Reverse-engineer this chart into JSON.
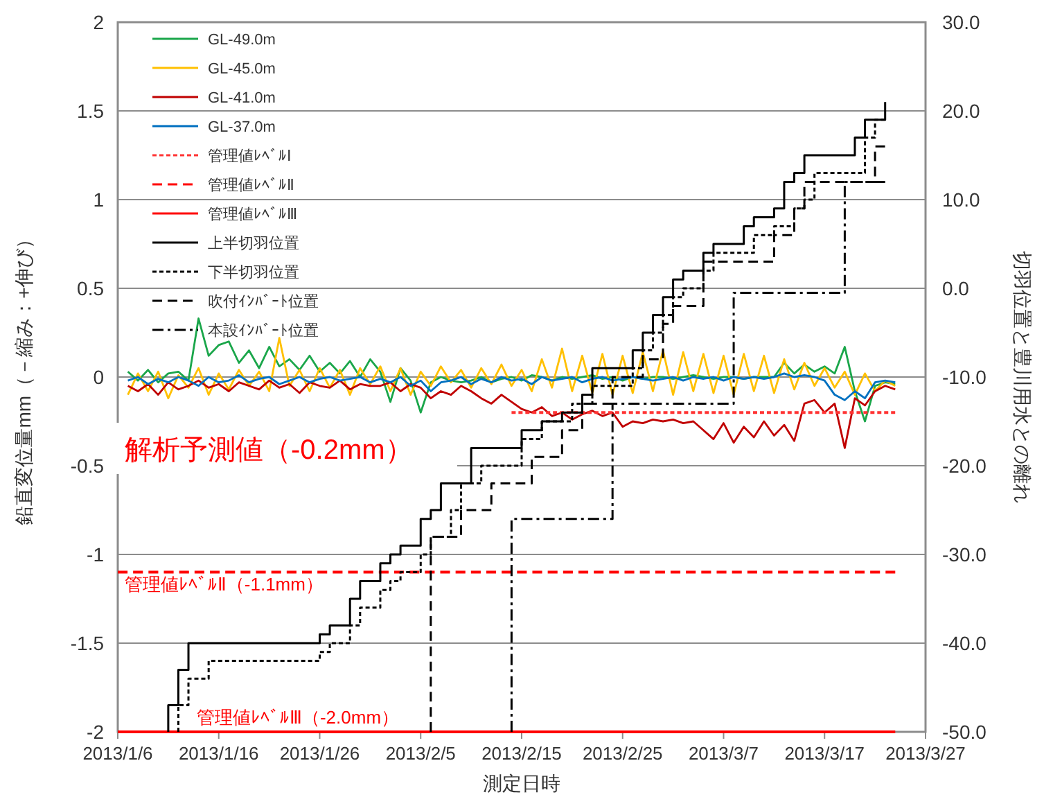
{
  "chart_data": {
    "type": "line",
    "xlabel": "測定日時",
    "ylabel": "鉛直変位量mm（－縮み：+伸び）",
    "y2label": "切羽位置と豊川用水との離れ",
    "xlim": [
      "2013-01-06",
      "2013-03-27"
    ],
    "xticks": [
      {
        "value": "2013-01-06",
        "label": "2013/1/6"
      },
      {
        "value": "2013-01-16",
        "label": "2013/1/16"
      },
      {
        "value": "2013-01-26",
        "label": "2013/1/26"
      },
      {
        "value": "2013-02-05",
        "label": "2013/2/5"
      },
      {
        "value": "2013-02-15",
        "label": "2013/2/15"
      },
      {
        "value": "2013-02-25",
        "label": "2013/2/25"
      },
      {
        "value": "2013-03-07",
        "label": "2013/3/7"
      },
      {
        "value": "2013-03-17",
        "label": "2013/3/17"
      },
      {
        "value": "2013-03-27",
        "label": "2013/3/27"
      }
    ],
    "ylim": [
      -2,
      2
    ],
    "yticks": [
      -2,
      -1.5,
      -1,
      -0.5,
      0,
      0.5,
      1,
      1.5,
      2
    ],
    "y2lim": [
      -50,
      30
    ],
    "y2ticks": [
      {
        "value": -50,
        "label": "-50.0"
      },
      {
        "value": -40,
        "label": "-40.0"
      },
      {
        "value": -30,
        "label": "-30.0"
      },
      {
        "value": -20,
        "label": "-20.0"
      },
      {
        "value": -10,
        "label": "-10.0"
      },
      {
        "value": 0,
        "label": "0.0"
      },
      {
        "value": 10,
        "label": "10.0"
      },
      {
        "value": 20,
        "label": "20.0"
      },
      {
        "value": 30,
        "label": "30.0"
      }
    ],
    "grid": "y",
    "legend": "top left",
    "marker": "none",
    "x": [
      "2013-01-07",
      "2013-01-08",
      "2013-01-09",
      "2013-01-10",
      "2013-01-11",
      "2013-01-12",
      "2013-01-13",
      "2013-01-14",
      "2013-01-15",
      "2013-01-16",
      "2013-01-17",
      "2013-01-18",
      "2013-01-19",
      "2013-01-20",
      "2013-01-21",
      "2013-01-22",
      "2013-01-23",
      "2013-01-24",
      "2013-01-25",
      "2013-01-26",
      "2013-01-27",
      "2013-01-28",
      "2013-01-29",
      "2013-01-30",
      "2013-01-31",
      "2013-02-01",
      "2013-02-02",
      "2013-02-03",
      "2013-02-04",
      "2013-02-05",
      "2013-02-06",
      "2013-02-07",
      "2013-02-08",
      "2013-02-09",
      "2013-02-10",
      "2013-02-11",
      "2013-02-12",
      "2013-02-13",
      "2013-02-14",
      "2013-02-15",
      "2013-02-16",
      "2013-02-17",
      "2013-02-18",
      "2013-02-19",
      "2013-02-20",
      "2013-02-21",
      "2013-02-22",
      "2013-02-23",
      "2013-02-24",
      "2013-02-25",
      "2013-02-26",
      "2013-02-27",
      "2013-02-28",
      "2013-03-01",
      "2013-03-02",
      "2013-03-03",
      "2013-03-04",
      "2013-03-05",
      "2013-03-06",
      "2013-03-07",
      "2013-03-08",
      "2013-03-09",
      "2013-03-10",
      "2013-03-11",
      "2013-03-12",
      "2013-03-13",
      "2013-03-14",
      "2013-03-15",
      "2013-03-16",
      "2013-03-17",
      "2013-03-18",
      "2013-03-19",
      "2013-03-20",
      "2013-03-21",
      "2013-03-22",
      "2013-03-23",
      "2013-03-24"
    ],
    "series": [
      {
        "name": "GL-49.0m",
        "type": "line",
        "color": "#1aa64a",
        "line_style": "solid",
        "values": [
          0.03,
          -0.02,
          0.04,
          -0.03,
          0.02,
          0.03,
          -0.02,
          0.33,
          0.12,
          0.18,
          0.2,
          0.08,
          0.15,
          0.05,
          0.17,
          0.06,
          0.1,
          0.04,
          0.12,
          0.03,
          0.08,
          0.02,
          0.09,
          0.0,
          0.1,
          0.03,
          -0.14,
          0.05,
          -0.02,
          -0.2,
          -0.03,
          0.0,
          -0.02,
          -0.03,
          -0.02,
          0.0,
          -0.03,
          -0.01,
          0.0,
          -0.02,
          0.01,
          0.0,
          -0.02,
          0.0,
          -0.01,
          0.0,
          0.01,
          -0.01,
          0.0,
          -0.02,
          0.0,
          -0.01,
          0.0,
          0.0,
          -0.01,
          0.0,
          0.01,
          0.0,
          -0.01,
          0.0,
          0.0,
          -0.01,
          0.0,
          0.0,
          0.0,
          0.08,
          0.02,
          0.07,
          0.03,
          0.06,
          0.02,
          0.17,
          -0.08,
          -0.25,
          -0.05,
          -0.03,
          -0.04
        ]
      },
      {
        "name": "GL-45.0m",
        "type": "line",
        "color": "#ffc000",
        "line_style": "solid",
        "values": [
          -0.1,
          0.02,
          -0.08,
          0.03,
          -0.12,
          0.01,
          -0.06,
          0.05,
          -0.1,
          0.02,
          -0.07,
          0.04,
          -0.05,
          0.03,
          -0.08,
          0.22,
          -0.05,
          0.04,
          -0.08,
          0.05,
          -0.06,
          0.04,
          -0.1,
          0.05,
          -0.04,
          0.06,
          -0.08,
          0.05,
          -0.1,
          0.03,
          -0.05,
          0.06,
          -0.03,
          0.04,
          -0.06,
          0.05,
          -0.04,
          0.07,
          -0.05,
          0.04,
          -0.08,
          0.1,
          -0.06,
          0.16,
          -0.08,
          0.12,
          -0.09,
          0.13,
          -0.1,
          0.12,
          -0.09,
          0.14,
          -0.08,
          0.15,
          -0.1,
          0.14,
          -0.08,
          0.13,
          -0.09,
          0.12,
          -0.1,
          0.13,
          -0.08,
          0.12,
          -0.09,
          0.1,
          -0.07,
          0.08,
          -0.05,
          0.05,
          -0.06,
          0.03,
          -0.1,
          0.02,
          -0.08,
          -0.02,
          -0.05
        ]
      },
      {
        "name": "GL-41.0m",
        "type": "line",
        "color": "#c00000",
        "line_style": "solid",
        "values": [
          -0.05,
          -0.08,
          -0.04,
          -0.1,
          -0.03,
          -0.07,
          -0.05,
          -0.02,
          -0.06,
          -0.04,
          -0.08,
          -0.03,
          -0.05,
          -0.07,
          -0.02,
          -0.06,
          -0.04,
          -0.09,
          -0.03,
          -0.05,
          -0.06,
          -0.02,
          -0.07,
          -0.04,
          -0.05,
          -0.05,
          -0.03,
          -0.08,
          -0.04,
          -0.06,
          -0.12,
          -0.08,
          -0.1,
          -0.05,
          -0.08,
          -0.12,
          -0.15,
          -0.1,
          -0.14,
          -0.18,
          -0.2,
          -0.17,
          -0.22,
          -0.2,
          -0.24,
          -0.21,
          -0.19,
          -0.22,
          -0.2,
          -0.28,
          -0.25,
          -0.26,
          -0.24,
          -0.25,
          -0.24,
          -0.26,
          -0.25,
          -0.3,
          -0.35,
          -0.26,
          -0.37,
          -0.28,
          -0.34,
          -0.25,
          -0.33,
          -0.27,
          -0.36,
          -0.15,
          -0.13,
          -0.2,
          -0.15,
          -0.4,
          -0.12,
          -0.16,
          -0.08,
          -0.05,
          -0.07
        ]
      },
      {
        "name": "GL-37.0m",
        "type": "line",
        "color": "#0070c0",
        "line_style": "solid",
        "values": [
          -0.02,
          0.0,
          -0.04,
          -0.01,
          -0.03,
          0.0,
          -0.02,
          -0.05,
          0.0,
          -0.03,
          -0.02,
          0.01,
          -0.03,
          -0.01,
          0.0,
          -0.04,
          -0.02,
          0.0,
          -0.03,
          -0.01,
          0.0,
          -0.02,
          -0.01,
          0.0,
          -0.03,
          -0.01,
          -0.03,
          0.0,
          -0.05,
          -0.02,
          -0.08,
          -0.03,
          -0.02,
          0.0,
          -0.04,
          -0.01,
          -0.03,
          0.0,
          -0.02,
          -0.01,
          -0.04,
          0.0,
          -0.02,
          -0.01,
          0.0,
          -0.03,
          -0.01,
          0.0,
          -0.02,
          -0.01,
          0.0,
          -0.01,
          -0.02,
          -0.01,
          0.0,
          -0.02,
          0.0,
          -0.01,
          0.0,
          -0.02,
          0.0,
          -0.01,
          0.0,
          -0.01,
          0.0,
          0.02,
          0.0,
          0.01,
          0.0,
          -0.02,
          -0.1,
          -0.13,
          -0.08,
          -0.12,
          -0.03,
          -0.02,
          -0.03
        ]
      },
      {
        "name": "管理値ﾚﾍﾞﾙⅠ",
        "type": "line",
        "color": "#ff3333",
        "line_style": "dotted",
        "x": [
          "2013-02-14",
          "2013-03-24"
        ],
        "values": [
          -0.2,
          -0.2
        ]
      },
      {
        "name": "管理値ﾚﾍﾞﾙⅡ",
        "type": "line",
        "color": "#ff0000",
        "line_style": "dashed",
        "x": [
          "2013-01-06",
          "2013-03-24"
        ],
        "values": [
          -1.1,
          -1.1
        ]
      },
      {
        "name": "管理値ﾚﾍﾞﾙⅢ",
        "type": "line",
        "color": "#ff0000",
        "line_style": "solid",
        "x": [
          "2013-01-06",
          "2013-03-24"
        ],
        "values": [
          -2,
          -2
        ]
      },
      {
        "name": "上半切羽位置",
        "type": "step",
        "axis": "y2",
        "color": "#000000",
        "line_style": "solid",
        "x": [
          "2013-01-11",
          "2013-01-11",
          "2013-01-12",
          "2013-01-13",
          "2013-01-26",
          "2013-01-27",
          "2013-01-29",
          "2013-01-30",
          "2013-02-01",
          "2013-02-02",
          "2013-02-03",
          "2013-02-05",
          "2013-02-06",
          "2013-02-07",
          "2013-02-10",
          "2013-02-15",
          "2013-02-17",
          "2013-02-19",
          "2013-02-21",
          "2013-02-22",
          "2013-02-26",
          "2013-02-27",
          "2013-02-28",
          "2013-03-01",
          "2013-03-02",
          "2013-03-03",
          "2013-03-05",
          "2013-03-06",
          "2013-03-09",
          "2013-03-10",
          "2013-03-12",
          "2013-03-13",
          "2013-03-14",
          "2013-03-15",
          "2013-03-20",
          "2013-03-21",
          "2013-03-23",
          "2013-03-23"
        ],
        "values": [
          -50,
          -47,
          -43,
          -40,
          -39,
          -38,
          -35,
          -33,
          -31,
          -30,
          -29,
          -26,
          -25,
          -22,
          -18,
          -16,
          -15,
          -14,
          -12,
          -9,
          -7,
          -5,
          -3,
          -1,
          1,
          2,
          4,
          5,
          7,
          8,
          9,
          12,
          13,
          15,
          17,
          19,
          19,
          21
        ]
      },
      {
        "name": "下半切羽位置",
        "type": "step",
        "axis": "y2",
        "color": "#000000",
        "line_style": "dotted",
        "x": [
          "2013-01-12",
          "2013-01-12",
          "2013-01-13",
          "2013-01-15",
          "2013-01-26",
          "2013-01-27",
          "2013-01-29",
          "2013-01-30",
          "2013-02-01",
          "2013-02-02",
          "2013-02-03",
          "2013-02-05",
          "2013-02-06",
          "2013-02-08",
          "2013-02-09",
          "2013-02-11",
          "2013-02-15",
          "2013-02-17",
          "2013-02-20",
          "2013-02-22",
          "2013-02-26",
          "2013-02-27",
          "2013-02-28",
          "2013-03-01",
          "2013-03-02",
          "2013-03-03",
          "2013-03-05",
          "2013-03-06",
          "2013-03-10",
          "2013-03-12",
          "2013-03-14",
          "2013-03-15",
          "2013-03-16",
          "2013-03-21",
          "2013-03-22",
          "2013-03-23"
        ],
        "values": [
          -50,
          -47,
          -44,
          -42,
          -41,
          -40,
          -38,
          -36,
          -34,
          -33,
          -32,
          -30,
          -28,
          -25,
          -22,
          -20,
          -17,
          -15,
          -13,
          -11,
          -9,
          -7,
          -5,
          -3,
          -1,
          0,
          2,
          4,
          6,
          7,
          9,
          10,
          13,
          17,
          19,
          19
        ]
      },
      {
        "name": "吹付ｲﾝﾊﾞｰﾄ位置",
        "type": "step",
        "axis": "y2",
        "color": "#000000",
        "line_style": "dashed",
        "x": [
          "2013-02-06",
          "2013-02-06",
          "2013-02-09",
          "2013-02-12",
          "2013-02-16",
          "2013-02-19",
          "2013-02-21",
          "2013-02-24",
          "2013-02-27",
          "2013-03-01",
          "2013-03-02",
          "2013-03-05",
          "2013-03-12",
          "2013-03-14",
          "2013-03-15",
          "2013-03-22",
          "2013-03-23"
        ],
        "values": [
          -50,
          -28,
          -25,
          -22,
          -19,
          -16,
          -13,
          -10,
          -8,
          -4,
          -2,
          3,
          6,
          9,
          12,
          16,
          16
        ]
      },
      {
        "name": "本設ｲﾝﾊﾞｰﾄ位置",
        "type": "step",
        "axis": "y2",
        "color": "#000000",
        "line_style": "dashdot",
        "x": [
          "2013-02-14",
          "2013-02-14",
          "2013-02-24",
          "2013-03-08",
          "2013-03-19",
          "2013-03-23"
        ],
        "values": [
          -50,
          -26,
          -13,
          -0.5,
          12,
          12
        ]
      }
    ],
    "annotations": [
      "解析予測値（-0.2mm）",
      "管理値ﾚﾍﾞﾙⅡ（-1.1mm）",
      "管理値ﾚﾍﾞﾙⅢ（-2.0mm）"
    ]
  }
}
